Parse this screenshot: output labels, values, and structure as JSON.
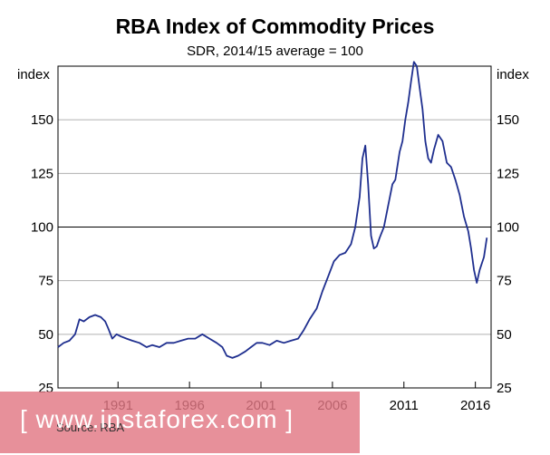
{
  "chart_data": {
    "type": "line",
    "title": "RBA Index of Commodity Prices",
    "subtitle": "SDR, 2014/15 average = 100",
    "ylabel_left": "index",
    "ylabel_right": "index",
    "ylim": [
      25,
      175
    ],
    "yticks": [
      25,
      50,
      75,
      100,
      125,
      150
    ],
    "xlim": [
      1986.8,
      2017.1
    ],
    "xticks": [
      {
        "value": 1991,
        "label": "1991"
      },
      {
        "value": 1996,
        "label": "1996"
      },
      {
        "value": 2001,
        "label": "2001"
      },
      {
        "value": 2006,
        "label": "2006"
      },
      {
        "value": 2011,
        "label": "2011"
      },
      {
        "value": 2016,
        "label": "2016"
      }
    ],
    "reference_line": 100,
    "gridlines": true,
    "source": "Source:   RBA",
    "series": [
      {
        "name": "RBA Index of Commodity Prices",
        "color": "#1f2f8f",
        "x": [
          1986.8,
          1987.2,
          1987.6,
          1988.0,
          1988.3,
          1988.6,
          1989.0,
          1989.4,
          1989.8,
          1990.1,
          1990.3,
          1990.6,
          1990.9,
          1991.2,
          1991.6,
          1992.0,
          1992.5,
          1993.0,
          1993.4,
          1993.9,
          1994.4,
          1994.9,
          1995.4,
          1995.9,
          1996.4,
          1996.9,
          1997.4,
          1997.9,
          1998.3,
          1998.6,
          1999.0,
          1999.4,
          1999.9,
          2000.3,
          2000.7,
          2001.1,
          2001.6,
          2002.1,
          2002.6,
          2003.1,
          2003.6,
          2004.0,
          2004.4,
          2004.9,
          2005.3,
          2005.7,
          2006.1,
          2006.5,
          2006.9,
          2007.3,
          2007.6,
          2007.9,
          2008.1,
          2008.3,
          2008.5,
          2008.7,
          2008.9,
          2009.1,
          2009.3,
          2009.6,
          2009.9,
          2010.2,
          2010.4,
          2010.7,
          2010.9,
          2011.1,
          2011.3,
          2011.5,
          2011.7,
          2011.9,
          2012.1,
          2012.3,
          2012.5,
          2012.7,
          2012.9,
          2013.1,
          2013.4,
          2013.7,
          2014.0,
          2014.3,
          2014.6,
          2014.9,
          2015.2,
          2015.5,
          2015.7,
          2015.9,
          2016.1,
          2016.3,
          2016.6,
          2016.8
        ],
        "values": [
          44,
          46,
          47,
          50,
          57,
          56,
          58,
          59,
          58,
          56,
          53,
          48,
          50,
          49,
          48,
          47,
          46,
          44,
          45,
          44,
          46,
          46,
          47,
          48,
          48,
          50,
          48,
          46,
          44,
          40,
          39,
          40,
          42,
          44,
          46,
          46,
          45,
          47,
          46,
          47,
          48,
          52,
          57,
          62,
          70,
          77,
          84,
          87,
          88,
          92,
          100,
          114,
          132,
          138,
          120,
          96,
          90,
          91,
          95,
          100,
          110,
          120,
          122,
          135,
          140,
          150,
          158,
          168,
          177,
          175,
          165,
          155,
          140,
          132,
          130,
          136,
          143,
          140,
          130,
          128,
          122,
          115,
          105,
          98,
          90,
          80,
          74,
          80,
          86,
          95
        ]
      }
    ]
  },
  "watermark": {
    "text": "[ www.instaforex.com ]"
  }
}
